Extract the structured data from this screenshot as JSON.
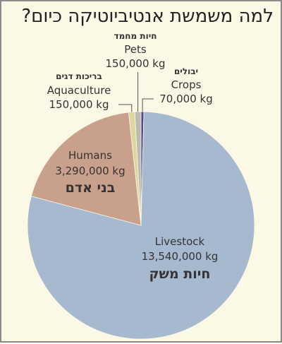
{
  "title": "למה משמשת אנטיביוטיקה כיום?",
  "chart_data": {
    "type": "pie",
    "title": "למה משמשת אנטיביוטיקה כיום?",
    "unit": "kg",
    "slices": [
      {
        "label": "Livestock",
        "label_he": "חיות משק",
        "value_text": "13,540,000 kg",
        "value": 13540000,
        "color": "#a6b9ce"
      },
      {
        "label": "Humans",
        "label_he": "בני אדם",
        "value_text": "3,290,000 kg",
        "value": 3290000,
        "color": "#c9a08c"
      },
      {
        "label": "Aquaculture",
        "label_he": "בריכות דגים",
        "value_text": "150,000 kg",
        "value": 150000,
        "color": "#ddd79f"
      },
      {
        "label": "Pets",
        "label_he": "חיות מחמד",
        "value_text": "150,000 kg",
        "value": 150000,
        "color": "#bdbab0"
      },
      {
        "label": "Crops",
        "label_he": "יבולים",
        "value_text": "70,000 kg",
        "value": 70000,
        "color": "#4d4a96"
      }
    ],
    "colors": {
      "background": "#fbf8e6",
      "livestock_he_text": "#2f4f79",
      "humans_he_text": "#6b3322",
      "humans_value_text": "#5a3a2e"
    }
  }
}
